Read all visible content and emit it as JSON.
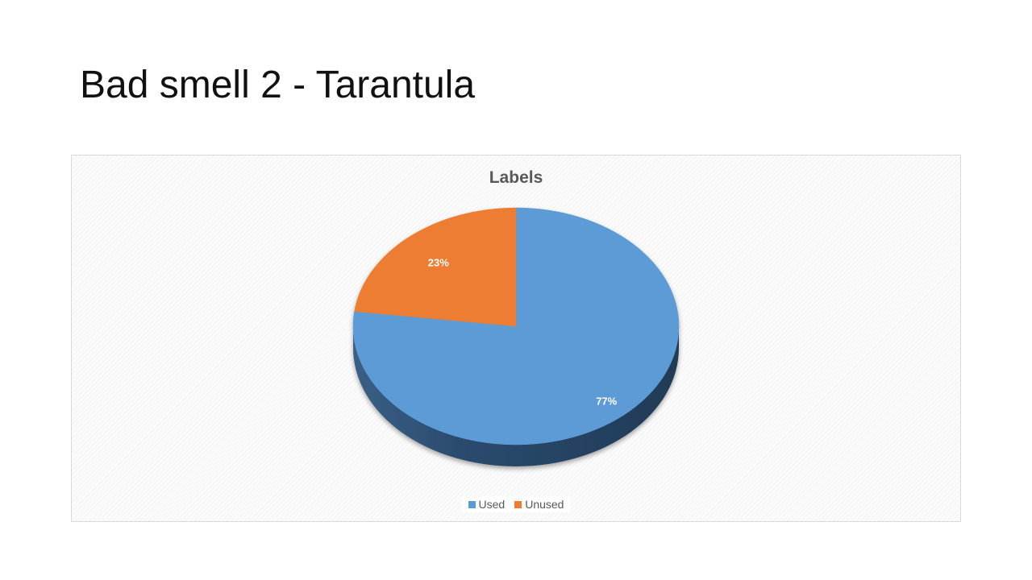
{
  "slide": {
    "title": "Bad smell 2 - Tarantula"
  },
  "chart_data": {
    "type": "pie",
    "title": "Labels",
    "categories": [
      "Used",
      "Unused"
    ],
    "values": [
      77,
      23
    ],
    "value_labels": [
      "77%",
      "23%"
    ],
    "colors": [
      "#5b9bd5",
      "#ed7d31"
    ],
    "legend_position": "bottom",
    "style": "3d"
  }
}
